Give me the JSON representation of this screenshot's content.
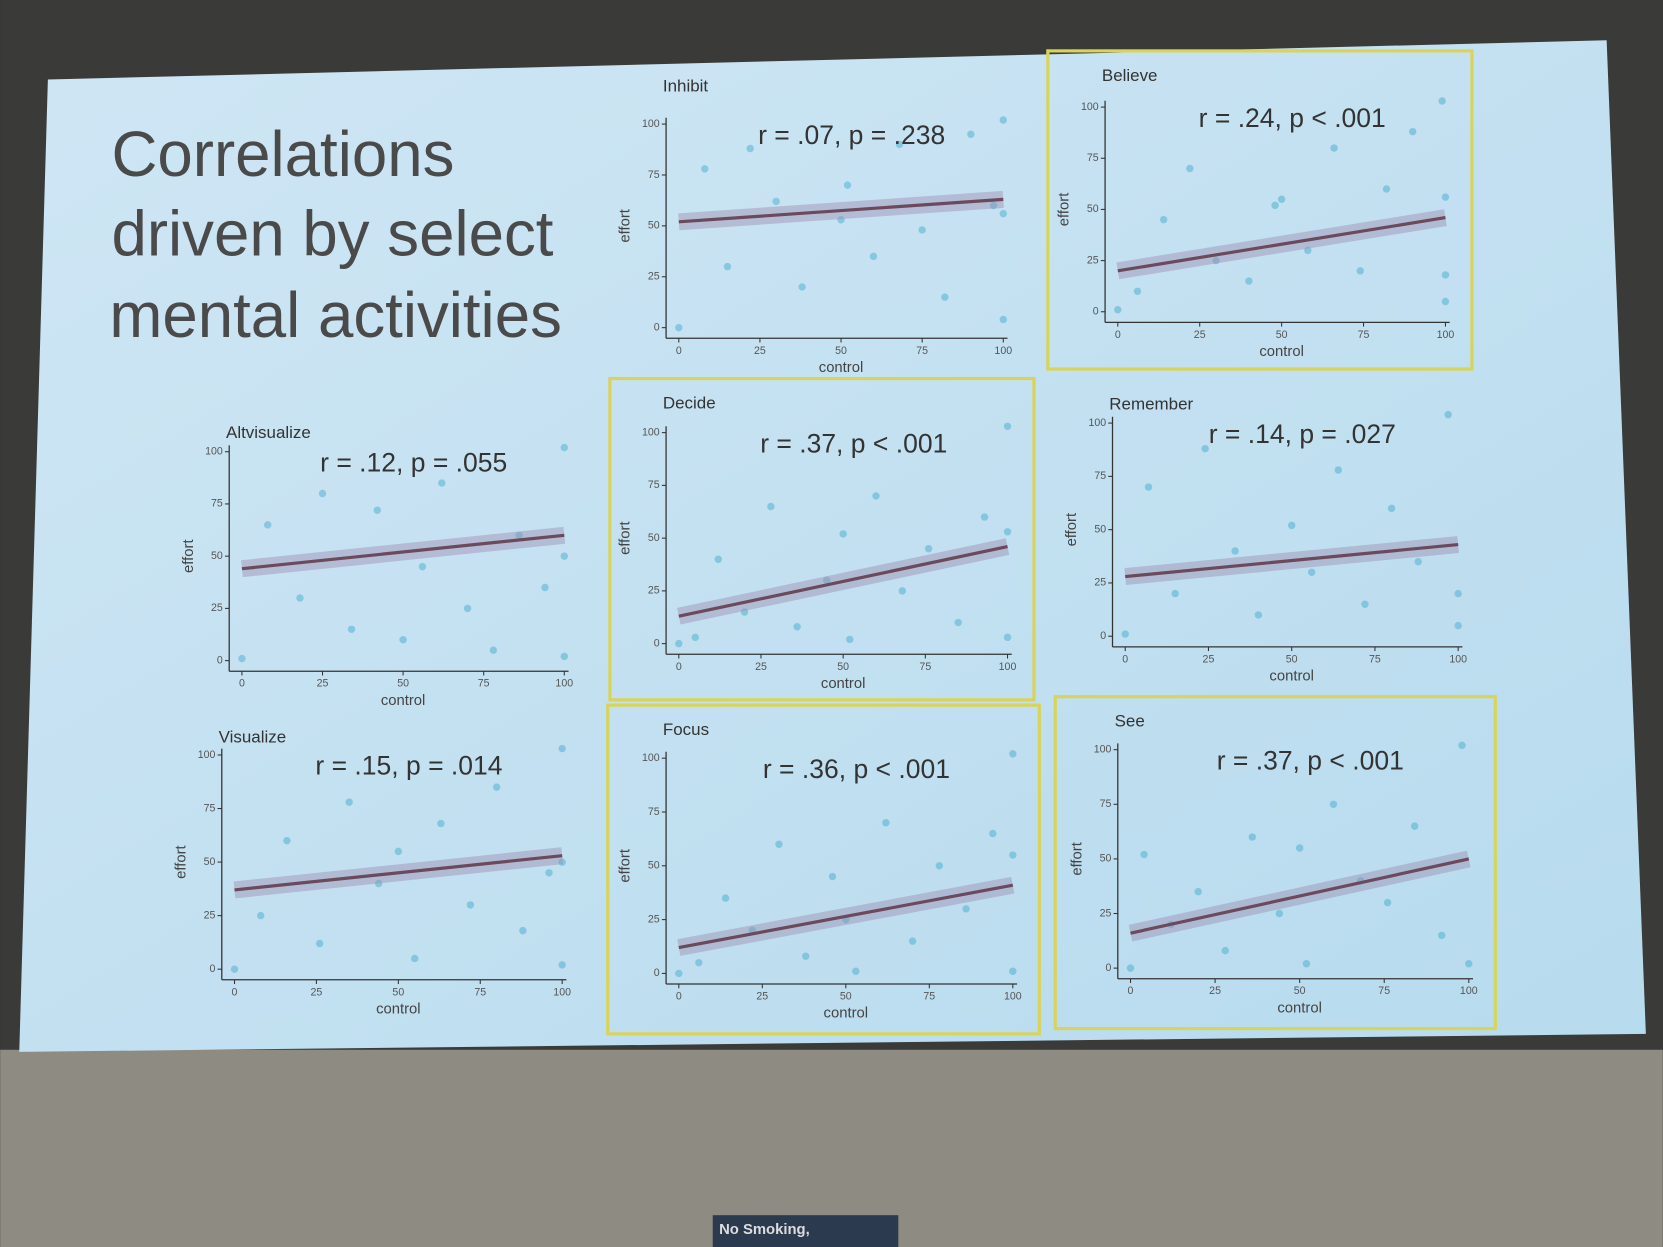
{
  "slide": {
    "title_lines": [
      "Correlations",
      "driven by select",
      "mental activities"
    ],
    "sign": "No Smoking,"
  },
  "chart_data": [
    {
      "type": "scatter",
      "title": "Inhibit",
      "annotation": "r = .07, p = .238",
      "xlabel": "control",
      "ylabel": "effort",
      "xlim": [
        0,
        100
      ],
      "ylim": [
        0,
        100
      ],
      "xticks": [
        0,
        25,
        50,
        75,
        100
      ],
      "yticks": [
        0,
        25,
        50,
        75,
        100
      ],
      "highlight": false,
      "color": "#3aa6c9",
      "x": [
        0,
        8,
        15,
        22,
        30,
        38,
        50,
        52,
        60,
        68,
        75,
        82,
        90,
        97,
        100,
        100,
        100
      ],
      "y": [
        0,
        78,
        30,
        88,
        62,
        20,
        53,
        70,
        35,
        90,
        48,
        15,
        95,
        60,
        102,
        56,
        4
      ],
      "fit": {
        "x": [
          0,
          100
        ],
        "y": [
          52,
          63
        ]
      }
    },
    {
      "type": "scatter",
      "title": "Believe",
      "annotation": "r = .24, p < .001",
      "xlabel": "control",
      "ylabel": "effort",
      "xlim": [
        0,
        100
      ],
      "ylim": [
        0,
        100
      ],
      "xticks": [
        0,
        25,
        50,
        75,
        100
      ],
      "yticks": [
        0,
        25,
        50,
        75,
        100
      ],
      "highlight": true,
      "color": "#3aa6c9",
      "x": [
        0,
        6,
        14,
        22,
        30,
        40,
        48,
        50,
        58,
        66,
        74,
        82,
        90,
        99,
        100,
        100,
        100
      ],
      "y": [
        1,
        10,
        45,
        70,
        25,
        15,
        52,
        55,
        30,
        80,
        20,
        60,
        88,
        103,
        56,
        18,
        5
      ],
      "fit": {
        "x": [
          0,
          100
        ],
        "y": [
          20,
          46
        ]
      }
    },
    {
      "type": "scatter",
      "title": "Altvisualize",
      "annotation": "r = .12, p = .055",
      "xlabel": "control",
      "ylabel": "effort",
      "xlim": [
        0,
        100
      ],
      "ylim": [
        0,
        100
      ],
      "xticks": [
        0,
        25,
        50,
        75,
        100
      ],
      "yticks": [
        0,
        25,
        50,
        75,
        100
      ],
      "highlight": false,
      "color": "#3aa6c9",
      "x": [
        0,
        8,
        18,
        25,
        34,
        42,
        50,
        56,
        62,
        70,
        78,
        86,
        94,
        100,
        100,
        100
      ],
      "y": [
        1,
        65,
        30,
        80,
        15,
        72,
        10,
        45,
        85,
        25,
        5,
        60,
        35,
        102,
        50,
        2
      ],
      "fit": {
        "x": [
          0,
          100
        ],
        "y": [
          44,
          60
        ]
      }
    },
    {
      "type": "scatter",
      "title": "Decide",
      "annotation": "r = .37, p < .001",
      "xlabel": "control",
      "ylabel": "effort",
      "xlim": [
        0,
        100
      ],
      "ylim": [
        0,
        100
      ],
      "xticks": [
        0,
        25,
        50,
        75,
        100
      ],
      "yticks": [
        0,
        25,
        50,
        75,
        100
      ],
      "highlight": true,
      "color": "#3aa6c9",
      "x": [
        0,
        5,
        12,
        20,
        28,
        36,
        45,
        50,
        52,
        60,
        68,
        76,
        85,
        93,
        100,
        100,
        100
      ],
      "y": [
        0,
        3,
        40,
        15,
        65,
        8,
        30,
        52,
        2,
        70,
        25,
        45,
        10,
        60,
        103,
        53,
        3
      ],
      "fit": {
        "x": [
          0,
          100
        ],
        "y": [
          13,
          46
        ]
      }
    },
    {
      "type": "scatter",
      "title": "Remember",
      "annotation": "r = .14, p = .027",
      "xlabel": "control",
      "ylabel": "effort",
      "xlim": [
        0,
        100
      ],
      "ylim": [
        0,
        100
      ],
      "xticks": [
        0,
        25,
        50,
        75,
        100
      ],
      "yticks": [
        0,
        25,
        50,
        75,
        100
      ],
      "highlight": false,
      "color": "#3aa6c9",
      "x": [
        0,
        7,
        15,
        24,
        33,
        40,
        50,
        56,
        64,
        72,
        80,
        88,
        97,
        100,
        100
      ],
      "y": [
        1,
        70,
        20,
        88,
        40,
        10,
        52,
        30,
        78,
        15,
        60,
        35,
        104,
        20,
        5
      ],
      "fit": {
        "x": [
          0,
          100
        ],
        "y": [
          28,
          43
        ]
      }
    },
    {
      "type": "scatter",
      "title": "Visualize",
      "annotation": "r = .15, p = .014",
      "xlabel": "control",
      "ylabel": "effort",
      "xlim": [
        0,
        100
      ],
      "ylim": [
        0,
        100
      ],
      "xticks": [
        0,
        25,
        50,
        75,
        100
      ],
      "yticks": [
        0,
        25,
        50,
        75,
        100
      ],
      "highlight": false,
      "color": "#3aa6c9",
      "x": [
        0,
        8,
        16,
        26,
        35,
        44,
        50,
        55,
        63,
        72,
        80,
        88,
        96,
        100,
        100,
        100
      ],
      "y": [
        0,
        25,
        60,
        12,
        78,
        40,
        55,
        5,
        68,
        30,
        85,
        18,
        45,
        103,
        50,
        2
      ],
      "fit": {
        "x": [
          0,
          100
        ],
        "y": [
          37,
          53
        ]
      }
    },
    {
      "type": "scatter",
      "title": "Focus",
      "annotation": "r = .36, p < .001",
      "xlabel": "control",
      "ylabel": "effort",
      "xlim": [
        0,
        100
      ],
      "ylim": [
        0,
        100
      ],
      "xticks": [
        0,
        25,
        50,
        75,
        100
      ],
      "yticks": [
        0,
        25,
        50,
        75,
        100
      ],
      "highlight": true,
      "color": "#3aa6c9",
      "x": [
        0,
        6,
        14,
        22,
        30,
        38,
        46,
        50,
        53,
        62,
        70,
        78,
        86,
        94,
        100,
        100,
        100
      ],
      "y": [
        0,
        5,
        35,
        20,
        60,
        8,
        45,
        25,
        1,
        70,
        15,
        50,
        30,
        65,
        102,
        55,
        1
      ],
      "fit": {
        "x": [
          0,
          100
        ],
        "y": [
          12,
          41
        ]
      }
    },
    {
      "type": "scatter",
      "title": "See",
      "annotation": "r = .37, p < .001",
      "xlabel": "control",
      "ylabel": "effort",
      "xlim": [
        0,
        100
      ],
      "ylim": [
        0,
        100
      ],
      "xticks": [
        0,
        25,
        50,
        75,
        100
      ],
      "yticks": [
        0,
        25,
        50,
        75,
        100
      ],
      "highlight": true,
      "color": "#3aa6c9",
      "x": [
        0,
        4,
        12,
        20,
        28,
        36,
        44,
        50,
        52,
        60,
        68,
        76,
        84,
        92,
        98,
        100
      ],
      "y": [
        0,
        52,
        20,
        35,
        8,
        60,
        25,
        55,
        2,
        75,
        40,
        30,
        65,
        15,
        102,
        2
      ],
      "fit": {
        "x": [
          0,
          100
        ],
        "y": [
          16,
          50
        ]
      }
    }
  ]
}
